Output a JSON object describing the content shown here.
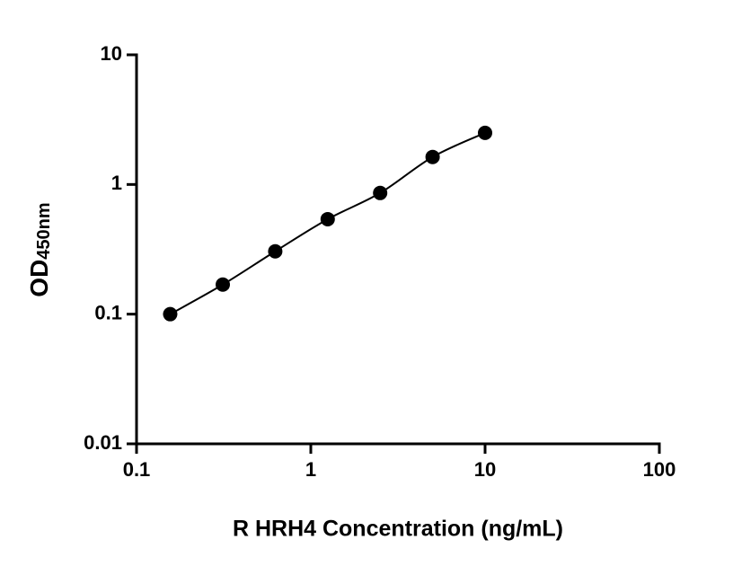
{
  "chart_data": {
    "type": "scatter",
    "x_label": "R HRH4 Concentration (ng/mL)",
    "y_label": "OD",
    "y_label_sub": "450nm",
    "xscale": "log",
    "yscale": "log",
    "xlim": [
      0.1,
      100
    ],
    "ylim": [
      0.01,
      10
    ],
    "xticks": [
      0.1,
      1,
      10,
      100
    ],
    "yticks": [
      0.01,
      0.1,
      1,
      10
    ],
    "fit_line": true,
    "series": [
      {
        "color": "#000000",
        "x": [
          0.156,
          0.3125,
          0.625,
          1.25,
          2.5,
          5,
          10
        ],
        "values": [
          0.1,
          0.169,
          0.305,
          0.54,
          0.86,
          1.63,
          2.5
        ]
      }
    ]
  }
}
